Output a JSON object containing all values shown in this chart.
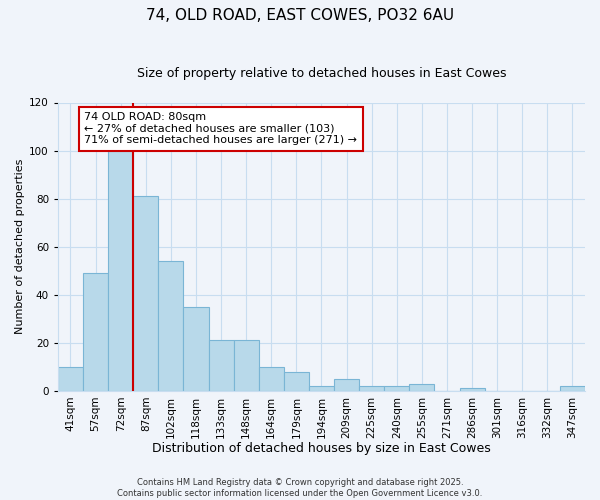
{
  "title": "74, OLD ROAD, EAST COWES, PO32 6AU",
  "subtitle": "Size of property relative to detached houses in East Cowes",
  "xlabel": "Distribution of detached houses by size in East Cowes",
  "ylabel": "Number of detached properties",
  "footer_line1": "Contains HM Land Registry data © Crown copyright and database right 2025.",
  "footer_line2": "Contains public sector information licensed under the Open Government Licence v3.0.",
  "categories": [
    "41sqm",
    "57sqm",
    "72sqm",
    "87sqm",
    "102sqm",
    "118sqm",
    "133sqm",
    "148sqm",
    "164sqm",
    "179sqm",
    "194sqm",
    "209sqm",
    "225sqm",
    "240sqm",
    "255sqm",
    "271sqm",
    "286sqm",
    "301sqm",
    "316sqm",
    "332sqm",
    "347sqm"
  ],
  "values": [
    10,
    49,
    100,
    81,
    54,
    35,
    21,
    21,
    10,
    8,
    2,
    5,
    2,
    2,
    3,
    0,
    1,
    0,
    0,
    0,
    2
  ],
  "bar_color": "#b8d9ea",
  "bar_edge_color": "#7ab5d5",
  "bar_linewidth": 0.8,
  "vline_index": 2,
  "vline_color": "#cc0000",
  "vline_linewidth": 1.5,
  "annotation_line1": "74 OLD ROAD: 80sqm",
  "annotation_line2": "← 27% of detached houses are smaller (103)",
  "annotation_line3": "71% of semi-detached houses are larger (271) →",
  "annotation_box_edge_color": "#cc0000",
  "annotation_box_face_color": "#ffffff",
  "ylim": [
    0,
    120
  ],
  "yticks": [
    0,
    20,
    40,
    60,
    80,
    100,
    120
  ],
  "grid_color": "#c8ddf0",
  "background_color": "#f0f4fa",
  "title_fontsize": 11,
  "subtitle_fontsize": 9,
  "xlabel_fontsize": 9,
  "ylabel_fontsize": 8,
  "tick_fontsize": 7.5,
  "annotation_fontsize": 8,
  "footer_fontsize": 6
}
